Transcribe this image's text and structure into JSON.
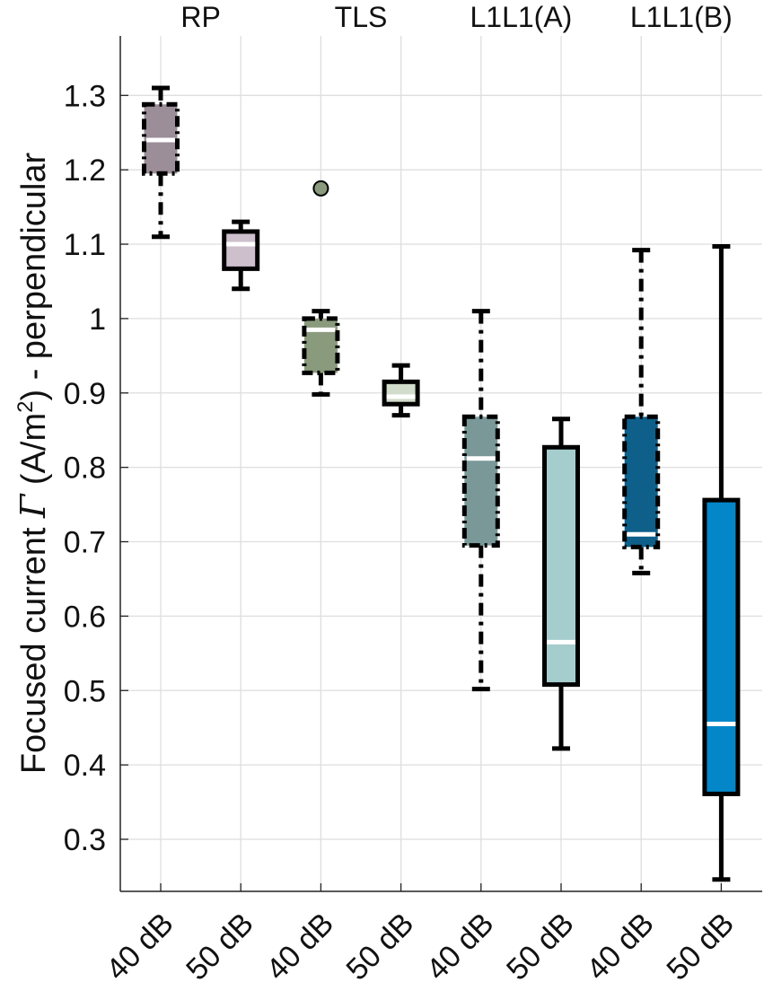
{
  "chart_data": {
    "type": "box",
    "ylabel": {
      "prefix": "Focused current ",
      "symbol": "Γ",
      "mid": " (A/m",
      "superscript": "2",
      "suffix": ") - perpendicular"
    },
    "ylim": [
      0.23,
      1.38
    ],
    "yticks": [
      0.3,
      0.4,
      0.5,
      0.6,
      0.7,
      0.8,
      0.9,
      1,
      1.1,
      1.2,
      1.3
    ],
    "grid": true,
    "groups": [
      {
        "label": "RP"
      },
      {
        "label": "TLS"
      },
      {
        "label": "L1L1(A)"
      },
      {
        "label": "L1L1(B)"
      }
    ],
    "categories": [
      "40 dB",
      "50 dB",
      "40 dB",
      "50 dB",
      "40 dB",
      "50 dB",
      "40 dB",
      "50 dB"
    ],
    "boxes": [
      {
        "group": "RP",
        "category": "40 dB",
        "whisker_low": 1.11,
        "q1": 1.195,
        "median": 1.24,
        "q3": 1.288,
        "whisker_high": 1.31,
        "fill": "#9b8e98",
        "dashed": true,
        "outliers": []
      },
      {
        "group": "RP",
        "category": "50 dB",
        "whisker_low": 1.04,
        "q1": 1.067,
        "median": 1.1,
        "q3": 1.117,
        "whisker_high": 1.13,
        "fill": "#cdbfcc",
        "dashed": false,
        "outliers": []
      },
      {
        "group": "TLS",
        "category": "40 dB",
        "whisker_low": 0.898,
        "q1": 0.927,
        "median": 0.985,
        "q3": 1.0,
        "whisker_high": 1.01,
        "fill": "#8a9a7d",
        "dashed": true,
        "outliers": [
          1.175
        ]
      },
      {
        "group": "TLS",
        "category": "50 dB",
        "whisker_low": 0.87,
        "q1": 0.885,
        "median": 0.895,
        "q3": 0.915,
        "whisker_high": 0.937,
        "fill": "#d2dccb",
        "dashed": false,
        "outliers": []
      },
      {
        "group": "L1L1(A)",
        "category": "40 dB",
        "whisker_low": 0.502,
        "q1": 0.695,
        "median": 0.812,
        "q3": 0.868,
        "whisker_high": 1.01,
        "fill": "#7a9898",
        "dashed": true,
        "outliers": []
      },
      {
        "group": "L1L1(A)",
        "category": "50 dB",
        "whisker_low": 0.422,
        "q1": 0.508,
        "median": 0.565,
        "q3": 0.827,
        "whisker_high": 0.865,
        "fill": "#a5cdcd",
        "dashed": false,
        "outliers": []
      },
      {
        "group": "L1L1(B)",
        "category": "40 dB",
        "whisker_low": 0.658,
        "q1": 0.693,
        "median": 0.71,
        "q3": 0.868,
        "whisker_high": 1.092,
        "fill": "#0e5f8a",
        "dashed": true,
        "outliers": []
      },
      {
        "group": "L1L1(B)",
        "category": "50 dB",
        "whisker_low": 0.246,
        "q1": 0.361,
        "median": 0.455,
        "q3": 0.756,
        "whisker_high": 1.097,
        "fill": "#0387c9",
        "dashed": false,
        "outliers": []
      }
    ]
  }
}
